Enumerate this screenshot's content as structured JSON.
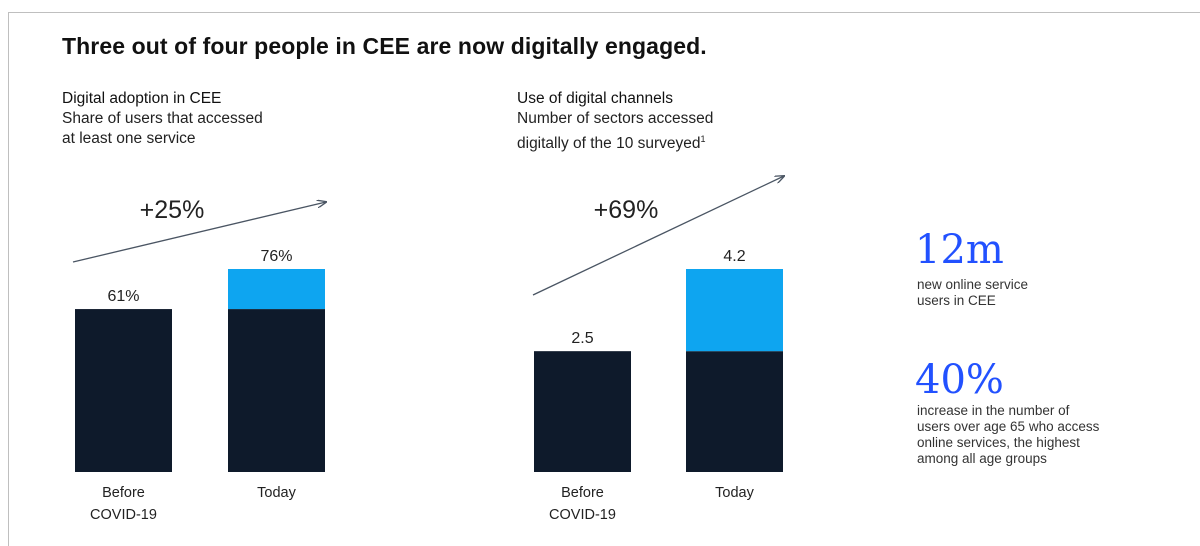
{
  "title": "Three out of four people in CEE are now digitally engaged.",
  "chart_data": [
    {
      "type": "bar",
      "title": "Digital adoption in CEE",
      "subtitle_lines": [
        "Share of users that accessed",
        "at least one service"
      ],
      "categories": [
        [
          "Before",
          "COVID-19"
        ],
        [
          "Today"
        ]
      ],
      "series": [
        {
          "values": [
            61,
            61
          ]
        },
        {
          "values": [
            0,
            15
          ]
        }
      ],
      "totals": [
        61,
        76
      ],
      "data_labels": [
        "61%",
        "76%"
      ],
      "growth_label": "+25%",
      "ylim": [
        0,
        76
      ],
      "colors": {
        "base": "#0e1a2b",
        "increase": "#0ea5f0"
      }
    },
    {
      "type": "bar",
      "title": "Use of digital channels",
      "subtitle_lines": [
        "Number of sectors accessed",
        "digitally of the 10 surveyed"
      ],
      "subtitle_footnote": "1",
      "categories": [
        [
          "Before",
          "COVID-19"
        ],
        [
          "Today"
        ]
      ],
      "series": [
        {
          "values": [
            2.5,
            2.5
          ]
        },
        {
          "values": [
            0,
            1.7
          ]
        }
      ],
      "totals": [
        2.5,
        4.2
      ],
      "data_labels": [
        "2.5",
        "4.2"
      ],
      "growth_label": "+69%",
      "ylim": [
        0,
        4.2
      ],
      "colors": {
        "base": "#0e1a2b",
        "increase": "#0ea5f0"
      }
    }
  ],
  "stats": [
    {
      "value": "12m",
      "lines": [
        "new online service",
        "users in CEE"
      ]
    },
    {
      "value": "40%",
      "lines": [
        "increase in the number of",
        "users over age 65 who access",
        "online services, the highest",
        "among all age groups"
      ]
    }
  ],
  "colors": {
    "accent": "#2251ff"
  }
}
